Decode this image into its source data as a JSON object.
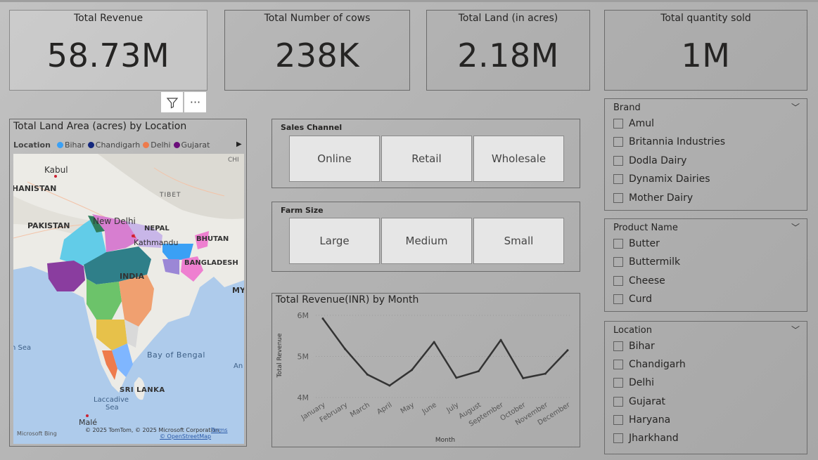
{
  "cards": {
    "revenue": {
      "title": "Total Revenue",
      "value": "58.73M"
    },
    "cows": {
      "title": "Total Number of cows",
      "value": "238K"
    },
    "land": {
      "title": "Total Land (in acres)",
      "value": "2.18M"
    },
    "qty": {
      "title": "Total quantity sold",
      "value": "1M"
    }
  },
  "visual_icons": {
    "filter": "filter-icon",
    "more": "more-options-icon",
    "more_glyph": "···"
  },
  "map": {
    "title": "Total Land Area (acres) by Location",
    "legend_label": "Location",
    "legend": [
      {
        "name": "Bihar",
        "color": "#3aa0f5"
      },
      {
        "name": "Chandigarh",
        "color": "#14287d"
      },
      {
        "name": "Delhi",
        "color": "#ee7b4c"
      },
      {
        "name": "Gujarat",
        "color": "#6b0e7a"
      }
    ],
    "labels": {
      "kabul": "Kabul",
      "afghanistan": "HANISTAN",
      "pakistan": "PAKISTAN",
      "tibet": "TIBET",
      "newdelhi": "New Delhi",
      "nepal": "NEPAL",
      "kathmandu": "Kathmandu",
      "bhutan": "BHUTAN",
      "india": "INDIA",
      "bangladesh": "BANGLADESH",
      "my": "MY",
      "sea": "n Sea",
      "bay": "Bay of Bengal",
      "an": "An",
      "srilanka": "SRI LANKA",
      "laccadive": "Laccadive",
      "laccadive2": "Sea",
      "male": "Malé",
      "chi": "CHI",
      "ms": "Microsoft Bing",
      "copyright": "© 2025 TomTom, © 2025 Microsoft Corporation,",
      "terms": "Terms",
      "osm": "© OpenStreetMap"
    }
  },
  "sales_channel": {
    "title": "Sales Channel",
    "options": [
      "Online",
      "Retail",
      "Wholesale"
    ]
  },
  "farm_size": {
    "title": "Farm Size",
    "options": [
      "Large",
      "Medium",
      "Small"
    ]
  },
  "chart_title": "Total Revenue(INR) by Month",
  "chart_data": {
    "type": "line",
    "title": "Total Revenue(INR) by Month",
    "xlabel": "Month",
    "ylabel": "Total Revenue",
    "ylim": [
      4,
      6
    ],
    "yticks": [
      "4M",
      "5M",
      "6M"
    ],
    "categories": [
      "January",
      "February",
      "March",
      "April",
      "May",
      "June",
      "July",
      "August",
      "September",
      "October",
      "November",
      "December"
    ],
    "values": [
      5.92,
      5.18,
      4.56,
      4.29,
      4.67,
      5.35,
      4.48,
      4.64,
      5.4,
      4.47,
      4.58,
      5.15
    ],
    "color": "#333333"
  },
  "brand": {
    "title": "Brand",
    "items": [
      "Amul",
      "Britannia Industries",
      "Dodla Dairy",
      "Dynamix Dairies",
      "Mother Dairy"
    ]
  },
  "product": {
    "title": "Product Name",
    "items": [
      "Butter",
      "Buttermilk",
      "Cheese",
      "Curd"
    ]
  },
  "location": {
    "title": "Location",
    "items": [
      "Bihar",
      "Chandigarh",
      "Delhi",
      "Gujarat",
      "Haryana",
      "Jharkhand"
    ]
  }
}
